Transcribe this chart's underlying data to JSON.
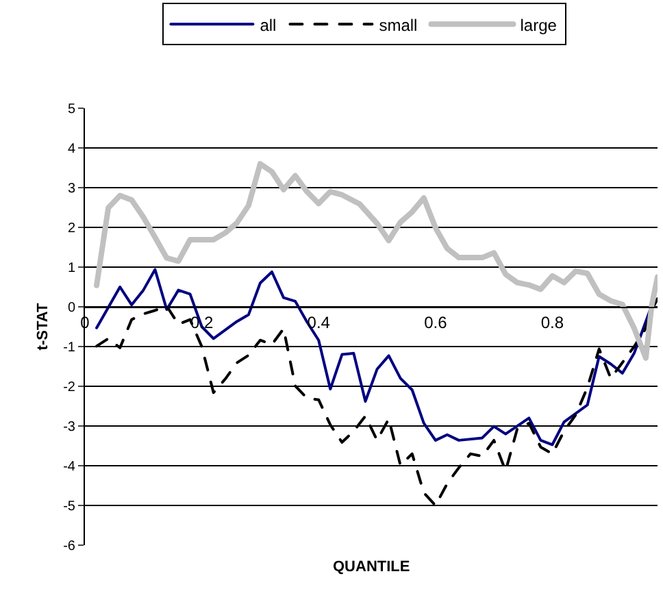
{
  "chart_data": {
    "type": "line",
    "xlabel": "QUANTILE",
    "ylabel": "t-STAT",
    "xlim": [
      0,
      0.98
    ],
    "xticks": [
      0,
      0.2,
      0.4,
      0.6,
      0.8
    ],
    "ylim": [
      -6,
      5
    ],
    "yticks": [
      -6,
      -5,
      -4,
      -3,
      -2,
      -1,
      0,
      1,
      2,
      3,
      4,
      5
    ],
    "grid": "y",
    "legend": "top",
    "marker": "none",
    "series": [
      {
        "name": "all",
        "color": "#000080",
        "line_style": "solid",
        "x": [
          0.02,
          0.06,
          0.08,
          0.1,
          0.12,
          0.14,
          0.16,
          0.18,
          0.2,
          0.22,
          0.26,
          0.28,
          0.3,
          0.32,
          0.34,
          0.36,
          0.38,
          0.4,
          0.42,
          0.44,
          0.46,
          0.48,
          0.5,
          0.52,
          0.54,
          0.56,
          0.58,
          0.6,
          0.62,
          0.64,
          0.68,
          0.7,
          0.72,
          0.76,
          0.78,
          0.8,
          0.82,
          0.86,
          0.88,
          0.9,
          0.92,
          0.94,
          0.97,
          0.98
        ],
        "values": [
          -0.53,
          0.5,
          0.05,
          0.42,
          0.94,
          -0.07,
          0.42,
          0.32,
          -0.5,
          -0.8,
          -0.37,
          -0.2,
          0.6,
          0.88,
          0.23,
          0.14,
          -0.38,
          -0.84,
          -2.07,
          -1.2,
          -1.17,
          -2.38,
          -1.57,
          -1.23,
          -1.8,
          -2.09,
          -2.93,
          -3.36,
          -3.22,
          -3.36,
          -3.3,
          -3.01,
          -3.2,
          -2.8,
          -3.36,
          -3.47,
          -2.9,
          -2.47,
          -1.25,
          -1.44,
          -1.67,
          -1.17,
          0.03,
          0.2
        ]
      },
      {
        "name": "small",
        "color": "#000000",
        "line_style": "dashed",
        "x": [
          0.02,
          0.04,
          0.06,
          0.08,
          0.1,
          0.12,
          0.14,
          0.16,
          0.18,
          0.2,
          0.22,
          0.24,
          0.26,
          0.28,
          0.3,
          0.32,
          0.34,
          0.36,
          0.38,
          0.4,
          0.42,
          0.44,
          0.46,
          0.48,
          0.5,
          0.52,
          0.54,
          0.56,
          0.58,
          0.6,
          0.62,
          0.64,
          0.66,
          0.68,
          0.7,
          0.72,
          0.74,
          0.76,
          0.78,
          0.8,
          0.82,
          0.84,
          0.86,
          0.88,
          0.9,
          0.92,
          0.94,
          0.96,
          0.97,
          0.98
        ],
        "values": [
          -0.99,
          -0.8,
          -1.03,
          -0.32,
          -0.18,
          -0.09,
          0.02,
          -0.44,
          -0.32,
          -1.0,
          -2.16,
          -1.82,
          -1.41,
          -1.22,
          -0.84,
          -0.95,
          -0.55,
          -1.99,
          -2.3,
          -2.34,
          -2.97,
          -3.41,
          -3.13,
          -2.75,
          -3.36,
          -2.82,
          -3.99,
          -3.7,
          -4.68,
          -5.0,
          -4.45,
          -4.05,
          -3.7,
          -3.76,
          -3.36,
          -4.13,
          -3.07,
          -2.93,
          -3.53,
          -3.7,
          -3.13,
          -2.72,
          -2.03,
          -1.06,
          -1.8,
          -1.4,
          -1.0,
          -0.54,
          -0.08,
          0.2
        ]
      },
      {
        "name": "large",
        "color": "#c0c0c0",
        "line_style": "solid",
        "x": [
          0.02,
          0.04,
          0.06,
          0.08,
          0.1,
          0.12,
          0.14,
          0.16,
          0.18,
          0.2,
          0.22,
          0.24,
          0.26,
          0.28,
          0.3,
          0.32,
          0.34,
          0.36,
          0.38,
          0.4,
          0.42,
          0.44,
          0.47,
          0.5,
          0.52,
          0.54,
          0.56,
          0.58,
          0.6,
          0.62,
          0.64,
          0.68,
          0.7,
          0.72,
          0.74,
          0.76,
          0.78,
          0.8,
          0.82,
          0.84,
          0.86,
          0.88,
          0.9,
          0.92,
          0.94,
          0.96,
          0.97,
          0.98
        ],
        "values": [
          0.54,
          2.49,
          2.8,
          2.69,
          2.26,
          1.75,
          1.23,
          1.15,
          1.69,
          1.69,
          1.69,
          1.86,
          2.11,
          2.55,
          3.6,
          3.4,
          2.95,
          3.3,
          2.9,
          2.6,
          2.9,
          2.82,
          2.59,
          2.1,
          1.67,
          2.13,
          2.39,
          2.74,
          1.99,
          1.47,
          1.24,
          1.24,
          1.36,
          0.82,
          0.61,
          0.55,
          0.44,
          0.78,
          0.61,
          0.9,
          0.84,
          0.32,
          0.15,
          0.06,
          -0.54,
          -1.29,
          0.03,
          0.75
        ]
      }
    ]
  }
}
